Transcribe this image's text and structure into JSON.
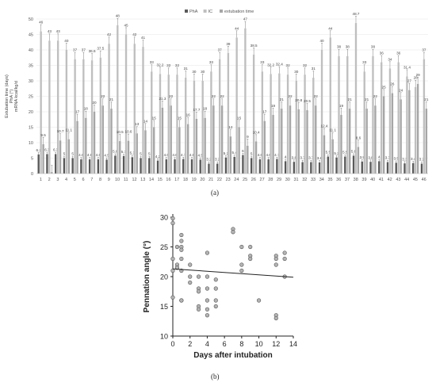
{
  "panel_a_label": "(a)",
  "panel_b_label": "(b)",
  "chart_data": [
    {
      "type": "bar",
      "ylabel_lines": [
        "Extubation time (days)",
        "PhA (°)",
        "mRNA   kcal/kg/d"
      ],
      "ylim": [
        0,
        50
      ],
      "yticks": [
        0,
        5,
        10,
        15,
        20,
        25,
        30,
        35,
        40,
        45,
        50
      ],
      "categories": [
        "1",
        "2",
        "3",
        "4",
        "5",
        "6",
        "7",
        "8",
        "9",
        "10",
        "11",
        "12",
        "13",
        "14",
        "15",
        "16",
        "17",
        "18",
        "19",
        "20",
        "21",
        "22",
        "23",
        "24",
        "25",
        "26",
        "27",
        "28",
        "29",
        "30",
        "31",
        "32",
        "33",
        "34",
        "35",
        "36",
        "37",
        "38",
        "39",
        "40",
        "41",
        "42",
        "43",
        "44",
        "45",
        "46"
      ],
      "legend_position": "top",
      "series": [
        {
          "name": "PhA",
          "color": "#595959",
          "values": [
            6.2,
            6.3,
            6.3,
            5,
            5,
            4.6,
            4.6,
            4.6,
            4.5,
            5.8,
            5.7,
            5.3,
            5,
            5,
            4.2,
            4.6,
            4.6,
            4.7,
            4.6,
            4.5,
            3.2,
            3.2,
            5.2,
            5.4,
            6,
            5,
            4.6,
            4.6,
            4.7,
            4,
            3.8,
            3.7,
            3.7,
            3.6,
            5.5,
            5.2,
            5.5,
            5.8,
            3.9,
            3.8,
            4,
            3.7,
            3.5,
            3.3,
            3.4,
            3.2
          ],
          "labels": [
            "6.2",
            "6.3",
            "6.3",
            "5",
            "5",
            "4.6",
            "4.6",
            "4.6",
            "4.5",
            "5.8",
            "5.7",
            "5.3",
            "5",
            "5",
            "4.2",
            "4.6",
            "4.6",
            "4.7",
            "4.6",
            "4.5",
            "3.2",
            "3.2",
            "5.2",
            "5.4",
            "6",
            "5",
            "4.6",
            "4.6",
            "4.7",
            "4",
            "3.8",
            "3.7",
            "3.7",
            "3.6",
            "5.5",
            "5.2",
            "5.5",
            "5.8",
            "3.9",
            "3.8",
            "4",
            "3.7",
            "3.5",
            "3.3",
            "3.4",
            "3.2"
          ]
        },
        {
          "name": "IC",
          "color": "#bfbfbf",
          "values": [
            46,
            43,
            43,
            40,
            37,
            37,
            36.6,
            37.5,
            42,
            48,
            45,
            42,
            41,
            33,
            32.2,
            32,
            32,
            31,
            30,
            30,
            33,
            37,
            39,
            44,
            47,
            38.5,
            33,
            32.2,
            32.4,
            32,
            30,
            32,
            31,
            40,
            44,
            38,
            38,
            48.7,
            33,
            38,
            36,
            34,
            36,
            31.4,
            28,
            37
          ],
          "labels": [
            "46",
            "43",
            "43",
            "40",
            "37",
            "37",
            "36.6",
            "37.5",
            "42",
            "48",
            "45",
            "42",
            "41",
            "33",
            "32.2",
            "32",
            "32",
            "31",
            "30",
            "30",
            "33",
            "37",
            "39",
            "44",
            "47",
            "38.5",
            "33",
            "32.2",
            "32.4",
            "32",
            "30",
            "32",
            "31",
            "40",
            "44",
            "38",
            "38",
            "48.7",
            "33",
            "38",
            "36",
            "34",
            "36",
            "31.4",
            "28",
            "37"
          ]
        },
        {
          "name": "extubation time",
          "color": "#a6a6a6",
          "values": [
            9.5,
            0.5,
            10.7,
            11.1,
            17,
            18,
            20,
            22,
            21,
            10.5,
            10.6,
            13,
            14,
            15,
            21.3,
            22,
            15,
            16,
            17.7,
            18,
            22,
            22,
            12,
            15,
            9,
            10.4,
            17,
            19,
            21,
            22,
            20.8,
            20.5,
            22,
            12.4,
            11.1,
            19,
            21,
            8.6,
            21,
            22,
            25,
            26,
            24,
            27,
            29,
            21
          ],
          "labels": [
            "9.5",
            "",
            "10.7",
            "11.1",
            "17",
            "18",
            "20",
            "22",
            "21",
            "10.5",
            "10.6",
            "13",
            "14",
            "15",
            "21.3",
            "22",
            "15",
            "16",
            "17.7",
            "18",
            "22",
            "22",
            "12",
            "15",
            "9",
            "10.4",
            "17",
            "19",
            "21",
            "22",
            "20.8",
            "20.5",
            "22",
            "12.4",
            "11.1",
            "19",
            "21",
            "8.6",
            "21",
            "22",
            "25",
            "26",
            "24",
            "27",
            "29",
            "21"
          ]
        }
      ]
    },
    {
      "type": "scatter",
      "xlabel": "Days after intubation",
      "ylabel": "Pennation angle (°)",
      "xlim": [
        0,
        14
      ],
      "ylim": [
        10,
        30
      ],
      "xticks": [
        0,
        2,
        4,
        6,
        8,
        10,
        12,
        14
      ],
      "yticks": [
        10,
        15,
        20,
        25,
        30
      ],
      "points": [
        [
          0,
          29.8
        ],
        [
          0,
          29
        ],
        [
          0,
          23
        ],
        [
          0,
          21
        ],
        [
          0,
          16.5
        ],
        [
          0.5,
          25
        ],
        [
          0.5,
          22
        ],
        [
          0.5,
          21.5
        ],
        [
          0.5,
          21.5
        ],
        [
          1,
          27
        ],
        [
          1,
          26
        ],
        [
          1,
          25
        ],
        [
          1,
          24.5
        ],
        [
          1,
          23
        ],
        [
          1,
          21
        ],
        [
          1,
          16
        ],
        [
          1,
          16
        ],
        [
          2,
          22
        ],
        [
          2,
          20
        ],
        [
          2,
          19
        ],
        [
          3,
          20
        ],
        [
          3,
          18
        ],
        [
          3,
          17.5
        ],
        [
          3,
          15
        ],
        [
          3,
          14.5
        ],
        [
          4,
          24
        ],
        [
          4,
          20
        ],
        [
          4,
          18
        ],
        [
          4,
          16
        ],
        [
          4,
          14.5
        ],
        [
          4,
          13.5
        ],
        [
          5,
          19.5
        ],
        [
          5,
          18
        ],
        [
          5,
          16
        ],
        [
          5,
          15
        ],
        [
          7,
          28
        ],
        [
          7,
          27.5
        ],
        [
          8,
          25
        ],
        [
          8,
          22
        ],
        [
          8,
          21
        ],
        [
          9,
          25
        ],
        [
          9,
          23.5
        ],
        [
          9,
          23
        ],
        [
          10,
          16
        ],
        [
          12,
          23.5
        ],
        [
          12,
          23
        ],
        [
          12,
          22
        ],
        [
          12,
          13.5
        ],
        [
          12,
          13
        ],
        [
          13,
          24
        ],
        [
          13,
          23
        ],
        [
          13,
          20
        ]
      ],
      "trendline": [
        [
          0,
          21.3
        ],
        [
          14,
          19.9
        ]
      ]
    }
  ]
}
